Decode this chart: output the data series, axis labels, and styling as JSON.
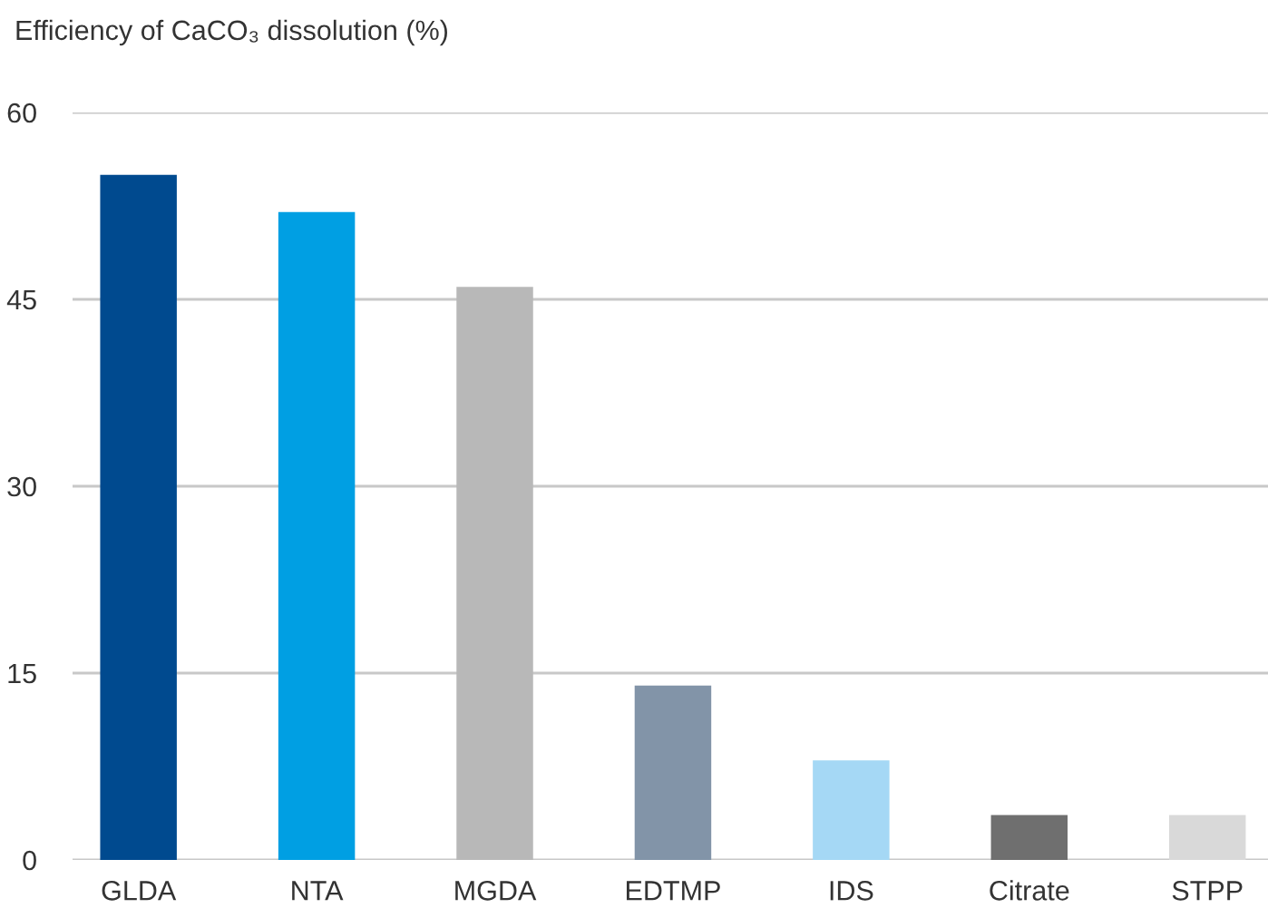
{
  "chart_data": {
    "type": "bar",
    "title": "Efficiency of CaCO₃ dissolution (%)",
    "categories": [
      "GLDA",
      "NTA",
      "MGDA",
      "EDTMP",
      "IDS",
      "Citrate",
      "STPP"
    ],
    "values": [
      55,
      52,
      46,
      14,
      8,
      3.6,
      3.6
    ],
    "colors": [
      "#004a8f",
      "#009fe3",
      "#b8b8b8",
      "#8294a8",
      "#a5d8f5",
      "#6f6f6f",
      "#d9d9d9"
    ],
    "ylim": [
      0,
      60
    ],
    "yticks": [
      0,
      15,
      30,
      45,
      60
    ],
    "grid": "y",
    "legend": false
  }
}
